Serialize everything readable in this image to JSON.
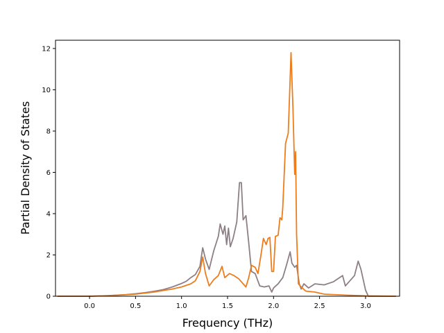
{
  "chart_data": {
    "type": "line",
    "title": "",
    "xlabel": "Frequency (THz)",
    "ylabel": "Partial Density of States",
    "xlim": [
      -0.37,
      3.37
    ],
    "ylim": [
      0,
      12.4
    ],
    "xticks": [
      0.0,
      0.5,
      1.0,
      1.5,
      2.0,
      2.5,
      3.0
    ],
    "xtick_labels": [
      "0.0",
      "0.5",
      "1.0",
      "1.5",
      "2.0",
      "2.5",
      "3.0"
    ],
    "yticks": [
      0,
      2,
      4,
      6,
      8,
      10,
      12
    ],
    "ytick_labels": [
      "0",
      "2",
      "4",
      "6",
      "8",
      "10",
      "12"
    ],
    "grid": false,
    "legend": "none",
    "series": [
      {
        "color": "#8c7f86",
        "points": [
          [
            -0.35,
            0.0
          ],
          [
            0.0,
            0.0
          ],
          [
            0.2,
            0.03
          ],
          [
            0.4,
            0.08
          ],
          [
            0.5,
            0.12
          ],
          [
            0.6,
            0.17
          ],
          [
            0.7,
            0.24
          ],
          [
            0.8,
            0.32
          ],
          [
            0.9,
            0.45
          ],
          [
            1.0,
            0.62
          ],
          [
            1.05,
            0.72
          ],
          [
            1.1,
            0.9
          ],
          [
            1.15,
            1.05
          ],
          [
            1.2,
            1.45
          ],
          [
            1.23,
            2.35
          ],
          [
            1.26,
            1.8
          ],
          [
            1.3,
            1.3
          ],
          [
            1.35,
            2.2
          ],
          [
            1.4,
            2.9
          ],
          [
            1.42,
            3.5
          ],
          [
            1.45,
            3.0
          ],
          [
            1.47,
            3.4
          ],
          [
            1.49,
            2.5
          ],
          [
            1.51,
            3.3
          ],
          [
            1.53,
            2.4
          ],
          [
            1.56,
            2.8
          ],
          [
            1.6,
            3.6
          ],
          [
            1.63,
            5.5
          ],
          [
            1.65,
            5.5
          ],
          [
            1.67,
            3.7
          ],
          [
            1.7,
            3.9
          ],
          [
            1.73,
            2.6
          ],
          [
            1.76,
            1.2
          ],
          [
            1.8,
            1.1
          ],
          [
            1.85,
            0.5
          ],
          [
            1.9,
            0.45
          ],
          [
            1.95,
            0.5
          ],
          [
            1.98,
            0.2
          ],
          [
            2.0,
            0.4
          ],
          [
            2.05,
            0.6
          ],
          [
            2.1,
            0.9
          ],
          [
            2.14,
            1.5
          ],
          [
            2.18,
            2.15
          ],
          [
            2.2,
            1.6
          ],
          [
            2.23,
            1.4
          ],
          [
            2.25,
            1.5
          ],
          [
            2.28,
            0.6
          ],
          [
            2.3,
            0.35
          ],
          [
            2.33,
            0.6
          ],
          [
            2.38,
            0.4
          ],
          [
            2.45,
            0.6
          ],
          [
            2.55,
            0.55
          ],
          [
            2.65,
            0.7
          ],
          [
            2.75,
            1.0
          ],
          [
            2.78,
            0.5
          ],
          [
            2.83,
            0.75
          ],
          [
            2.88,
            1.0
          ],
          [
            2.92,
            1.7
          ],
          [
            2.95,
            1.3
          ],
          [
            3.0,
            0.3
          ],
          [
            3.03,
            0.0
          ],
          [
            3.33,
            0.0
          ]
        ]
      },
      {
        "color": "#ed7d1c",
        "points": [
          [
            -0.35,
            0.0
          ],
          [
            0.0,
            0.0
          ],
          [
            0.2,
            0.03
          ],
          [
            0.4,
            0.07
          ],
          [
            0.5,
            0.1
          ],
          [
            0.6,
            0.15
          ],
          [
            0.7,
            0.2
          ],
          [
            0.8,
            0.28
          ],
          [
            0.9,
            0.35
          ],
          [
            1.0,
            0.45
          ],
          [
            1.1,
            0.6
          ],
          [
            1.15,
            0.75
          ],
          [
            1.2,
            1.2
          ],
          [
            1.23,
            1.9
          ],
          [
            1.26,
            1.1
          ],
          [
            1.3,
            0.5
          ],
          [
            1.35,
            0.8
          ],
          [
            1.4,
            1.0
          ],
          [
            1.44,
            1.45
          ],
          [
            1.47,
            0.9
          ],
          [
            1.52,
            1.1
          ],
          [
            1.57,
            1.0
          ],
          [
            1.62,
            0.85
          ],
          [
            1.67,
            0.6
          ],
          [
            1.7,
            0.45
          ],
          [
            1.73,
            0.9
          ],
          [
            1.76,
            1.5
          ],
          [
            1.8,
            1.4
          ],
          [
            1.83,
            1.1
          ],
          [
            1.86,
            1.9
          ],
          [
            1.89,
            2.8
          ],
          [
            1.92,
            2.5
          ],
          [
            1.94,
            2.8
          ],
          [
            1.96,
            2.85
          ],
          [
            1.98,
            1.2
          ],
          [
            2.0,
            1.2
          ],
          [
            2.02,
            2.9
          ],
          [
            2.05,
            2.95
          ],
          [
            2.07,
            3.8
          ],
          [
            2.09,
            3.7
          ],
          [
            2.1,
            4.3
          ],
          [
            2.13,
            7.4
          ],
          [
            2.16,
            7.9
          ],
          [
            2.19,
            11.8
          ],
          [
            2.21,
            9.2
          ],
          [
            2.23,
            5.9
          ],
          [
            2.24,
            7.0
          ],
          [
            2.25,
            3.0
          ],
          [
            2.27,
            0.6
          ],
          [
            2.3,
            0.45
          ],
          [
            2.35,
            0.25
          ],
          [
            2.45,
            0.2
          ],
          [
            2.55,
            0.1
          ],
          [
            2.65,
            0.08
          ],
          [
            2.8,
            0.05
          ],
          [
            2.95,
            0.03
          ],
          [
            3.0,
            0.02
          ],
          [
            3.33,
            0.0
          ]
        ]
      }
    ]
  }
}
